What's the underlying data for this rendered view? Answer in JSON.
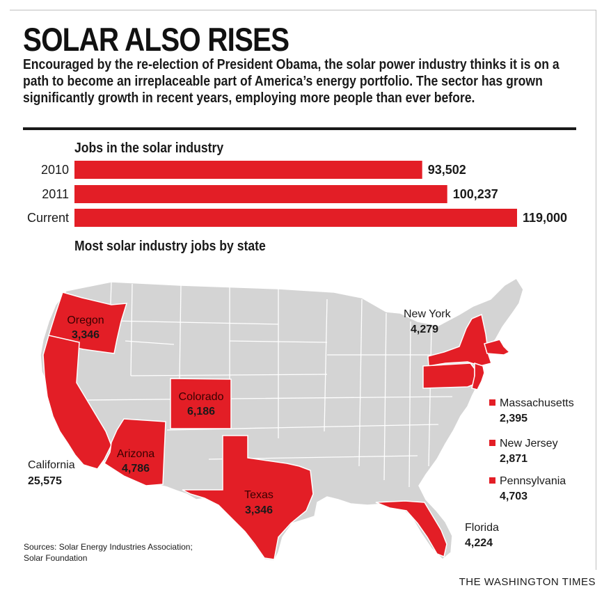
{
  "headline": "SOLAR ALSO RISES",
  "intro": "Encouraged by the re-election of President Obama, the solar power industry thinks it is on a path to become an irreplaceable part of America’s energy portfolio. The sector has grown significantly growth in recent years, employing more people than ever before.",
  "colors": {
    "accent": "#e31e26",
    "land": "#d4d4d4",
    "border": "#ffffff",
    "text": "#1a1a1a"
  },
  "chart_data": [
    {
      "type": "bar",
      "orientation": "horizontal",
      "title": "Jobs in the solar industry",
      "categories": [
        "2010",
        "2011",
        "Current"
      ],
      "values": [
        93502,
        100237,
        119000
      ],
      "value_labels": [
        "93,502",
        "100,237",
        "119,000"
      ],
      "xlim": [
        0,
        119000
      ],
      "grid": false
    },
    {
      "type": "map",
      "title": "Most solar industry jobs by state",
      "states": [
        {
          "name": "California",
          "value": 25575,
          "label": "25,575"
        },
        {
          "name": "Oregon",
          "value": 3346,
          "label": "3,346"
        },
        {
          "name": "Arizona",
          "value": 4786,
          "label": "4,786"
        },
        {
          "name": "Colorado",
          "value": 6186,
          "label": "6,186"
        },
        {
          "name": "Texas",
          "value": 3346,
          "label": "3,346"
        },
        {
          "name": "New York",
          "value": 4279,
          "label": "4,279"
        },
        {
          "name": "Florida",
          "value": 4224,
          "label": "4,224"
        },
        {
          "name": "Massachusetts",
          "value": 2395,
          "label": "2,395"
        },
        {
          "name": "New Jersey",
          "value": 2871,
          "label": "2,871"
        },
        {
          "name": "Pennsylvania",
          "value": 4703,
          "label": "4,703"
        }
      ]
    }
  ],
  "sources": "Sources: Solar Energy Industries Association;\nSolar Foundation",
  "credit": "THE WASHINGTON TIMES"
}
